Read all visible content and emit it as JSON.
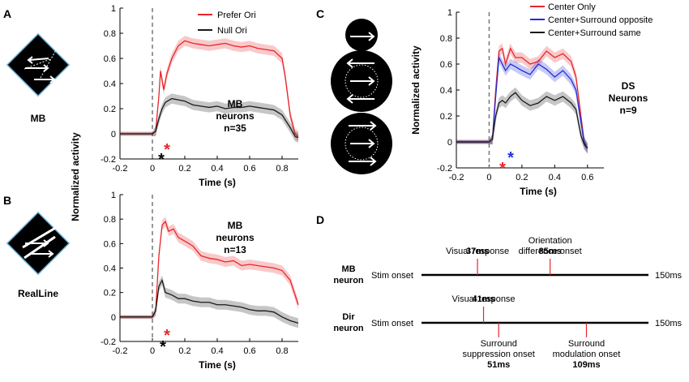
{
  "panels": {
    "a": "A",
    "b": "B",
    "c": "C",
    "d": "D"
  },
  "icon_labels": {
    "a": "MB",
    "b": "RealLine"
  },
  "chart_data": [
    {
      "id": "A",
      "type": "line",
      "xlabel": "Time (s)",
      "ylabel": "Normalized activity",
      "xlim": [
        -0.2,
        0.9
      ],
      "ylim": [
        -0.2,
        1
      ],
      "xticks": [
        "-0.2",
        "0",
        "0.2",
        "0.4",
        "0.6",
        "0.8"
      ],
      "yticks": [
        "-0.2",
        "0",
        "0.2",
        "0.4",
        "0.6",
        "0.8",
        "1"
      ],
      "annotation": [
        "MB",
        "neurons",
        "n=35"
      ],
      "series": [
        {
          "name": "Prefer Ori",
          "color": "#e8262b",
          "x": [
            -0.2,
            -0.1,
            0,
            0.02,
            0.04,
            0.05,
            0.07,
            0.09,
            0.12,
            0.16,
            0.2,
            0.25,
            0.3,
            0.35,
            0.4,
            0.45,
            0.5,
            0.55,
            0.6,
            0.65,
            0.7,
            0.75,
            0.8,
            0.82,
            0.85,
            0.88,
            0.9
          ],
          "y": [
            0,
            0,
            0,
            0.02,
            0.3,
            0.5,
            0.35,
            0.48,
            0.6,
            0.7,
            0.74,
            0.72,
            0.71,
            0.7,
            0.71,
            0.72,
            0.7,
            0.69,
            0.7,
            0.68,
            0.67,
            0.66,
            0.6,
            0.45,
            0.15,
            0.0,
            -0.02
          ]
        },
        {
          "name": "Null Ori",
          "color": "#1a1a1a",
          "x": [
            -0.2,
            -0.1,
            0,
            0.02,
            0.04,
            0.06,
            0.08,
            0.12,
            0.16,
            0.2,
            0.25,
            0.3,
            0.35,
            0.4,
            0.45,
            0.5,
            0.55,
            0.6,
            0.65,
            0.7,
            0.75,
            0.8,
            0.85,
            0.88,
            0.9
          ],
          "y": [
            0,
            0,
            0,
            0.02,
            0.12,
            0.2,
            0.25,
            0.28,
            0.27,
            0.26,
            0.23,
            0.22,
            0.21,
            0.22,
            0.2,
            0.21,
            0.21,
            0.22,
            0.21,
            0.2,
            0.19,
            0.15,
            0.05,
            -0.02,
            -0.03
          ]
        }
      ]
    },
    {
      "id": "B",
      "type": "line",
      "xlabel": "Time (s)",
      "ylabel": "Normalized activity",
      "xlim": [
        -0.2,
        0.9
      ],
      "ylim": [
        -0.2,
        1
      ],
      "xticks": [
        "-0.2",
        "0",
        "0.2",
        "0.4",
        "0.6",
        "0.8"
      ],
      "yticks": [
        "-0.2",
        "0",
        "0.2",
        "0.4",
        "0.6",
        "0.8",
        "1"
      ],
      "annotation": [
        "MB",
        "neurons",
        "n=13"
      ],
      "series": [
        {
          "name": "Prefer Ori",
          "color": "#e8262b",
          "x": [
            -0.2,
            -0.1,
            0,
            0.02,
            0.04,
            0.06,
            0.08,
            0.1,
            0.13,
            0.16,
            0.2,
            0.25,
            0.3,
            0.35,
            0.4,
            0.45,
            0.5,
            0.55,
            0.6,
            0.65,
            0.7,
            0.75,
            0.8,
            0.85,
            0.9
          ],
          "y": [
            0,
            0,
            0,
            0.05,
            0.5,
            0.75,
            0.78,
            0.7,
            0.72,
            0.65,
            0.62,
            0.58,
            0.5,
            0.48,
            0.47,
            0.45,
            0.46,
            0.42,
            0.43,
            0.42,
            0.41,
            0.4,
            0.38,
            0.3,
            0.1
          ]
        },
        {
          "name": "Null Ori",
          "color": "#1a1a1a",
          "x": [
            -0.2,
            -0.1,
            0,
            0.02,
            0.04,
            0.06,
            0.08,
            0.12,
            0.16,
            0.2,
            0.25,
            0.3,
            0.35,
            0.4,
            0.45,
            0.5,
            0.55,
            0.6,
            0.65,
            0.7,
            0.75,
            0.8,
            0.85,
            0.9
          ],
          "y": [
            0,
            0,
            0,
            0.05,
            0.25,
            0.3,
            0.2,
            0.18,
            0.15,
            0.15,
            0.13,
            0.12,
            0.12,
            0.1,
            0.1,
            0.09,
            0.08,
            0.06,
            0.05,
            0.05,
            0.04,
            0.0,
            -0.03,
            -0.05
          ]
        }
      ]
    },
    {
      "id": "C",
      "type": "line",
      "xlabel": "Time (s)",
      "ylabel": "Normalized activity",
      "xlim": [
        -0.2,
        0.7
      ],
      "ylim": [
        -0.2,
        1
      ],
      "xticks": [
        "-0.2",
        "0",
        "0.2",
        "0.4",
        "0.6"
      ],
      "yticks": [
        "-0.2",
        "0",
        "0.2",
        "0.4",
        "0.6",
        "0.8",
        "1"
      ],
      "annotation": [
        "DS",
        "Neurons",
        "n=9"
      ],
      "series": [
        {
          "name": "Center Only",
          "color": "#e8262b",
          "x": [
            -0.2,
            -0.1,
            0,
            0.02,
            0.04,
            0.06,
            0.08,
            0.1,
            0.13,
            0.16,
            0.2,
            0.25,
            0.3,
            0.35,
            0.4,
            0.45,
            0.5,
            0.53,
            0.56,
            0.58,
            0.6
          ],
          "y": [
            0,
            0,
            0,
            0.02,
            0.4,
            0.7,
            0.72,
            0.6,
            0.72,
            0.65,
            0.65,
            0.6,
            0.62,
            0.7,
            0.65,
            0.68,
            0.62,
            0.5,
            0.2,
            0.0,
            -0.05
          ]
        },
        {
          "name": "Center+Surround opposite",
          "color": "#1f2fd8",
          "x": [
            -0.2,
            -0.1,
            0,
            0.02,
            0.04,
            0.06,
            0.08,
            0.1,
            0.13,
            0.16,
            0.2,
            0.25,
            0.3,
            0.35,
            0.4,
            0.45,
            0.5,
            0.53,
            0.56,
            0.58,
            0.6
          ],
          "y": [
            0,
            0,
            0,
            0.02,
            0.35,
            0.65,
            0.6,
            0.55,
            0.6,
            0.58,
            0.55,
            0.52,
            0.6,
            0.56,
            0.5,
            0.55,
            0.48,
            0.4,
            0.15,
            0.0,
            -0.05
          ]
        },
        {
          "name": "Center+Surround same",
          "color": "#1a1a1a",
          "x": [
            -0.2,
            -0.1,
            0,
            0.02,
            0.04,
            0.06,
            0.08,
            0.1,
            0.13,
            0.16,
            0.2,
            0.25,
            0.3,
            0.35,
            0.4,
            0.45,
            0.5,
            0.53,
            0.56,
            0.58,
            0.6
          ],
          "y": [
            0,
            0,
            0,
            0.02,
            0.2,
            0.3,
            0.32,
            0.3,
            0.35,
            0.38,
            0.32,
            0.28,
            0.3,
            0.35,
            0.32,
            0.35,
            0.3,
            0.25,
            0.05,
            -0.02,
            -0.05
          ]
        }
      ]
    }
  ],
  "timeline": {
    "end_label": "150ms",
    "rows": [
      {
        "name": [
          "MB",
          "neuron"
        ],
        "start_label": "Stim onset",
        "events": [
          {
            "lines": [
              "Visual response"
            ],
            "value": "37ms",
            "ms": 37,
            "side": "above"
          },
          {
            "lines": [
              "Orientation",
              "difference onset"
            ],
            "value": "85ms",
            "ms": 85,
            "side": "above"
          }
        ]
      },
      {
        "name": [
          "Dir",
          "neuron"
        ],
        "start_label": "Stim onset",
        "events": [
          {
            "lines": [
              "Visual response"
            ],
            "value": "41ms",
            "ms": 41,
            "side": "above"
          },
          {
            "lines": [
              "Surround",
              "suppression onset"
            ],
            "value": "51ms",
            "ms": 51,
            "side": "below"
          },
          {
            "lines": [
              "Surround",
              "modulation onset"
            ],
            "value": "109ms",
            "ms": 109,
            "side": "below"
          }
        ]
      }
    ]
  }
}
